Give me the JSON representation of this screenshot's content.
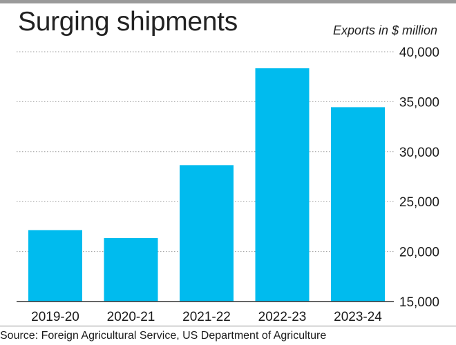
{
  "chart_data": {
    "type": "bar",
    "title": "Surging shipments",
    "unit_label": "Exports in $ million",
    "categories": [
      "2019-20",
      "2020-21",
      "2021-22",
      "2022-23",
      "2023-24"
    ],
    "values": [
      22150,
      21350,
      28650,
      38350,
      34450
    ],
    "ylim": [
      15000,
      40000
    ],
    "yticks": [
      15000,
      20000,
      25000,
      30000,
      35000,
      40000
    ],
    "ytick_labels": [
      "15,000",
      "20,000",
      "25,000",
      "30,000",
      "35,000",
      "40,000"
    ],
    "grid": true,
    "bar_color": "#00bbee",
    "source": "Source: Foreign Agricultural Service, US Department of Agriculture"
  }
}
